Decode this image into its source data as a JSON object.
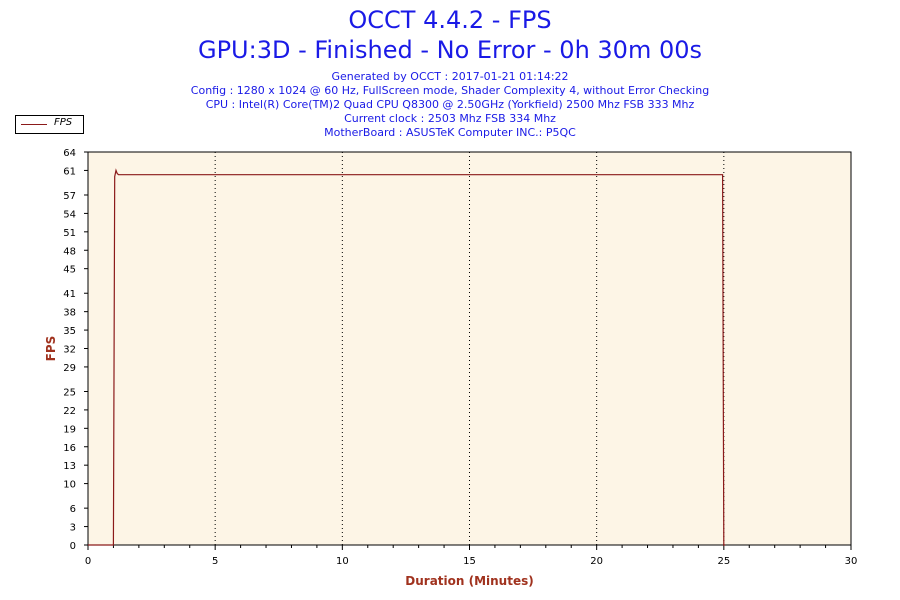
{
  "header": {
    "title": "OCCT 4.4.2 - FPS",
    "subtitle": "GPU:3D - Finished - No Error - 0h 30m 00s",
    "info_lines": [
      "Generated by OCCT : 2017-01-21 01:14:22",
      "Config : 1280 x 1024 @ 60 Hz, FullScreen mode, Shader Complexity 4, without Error Checking",
      "CPU : Intel(R) Core(TM)2 Quad CPU Q8300 @ 2.50GHz (Yorkfield) 2500 Mhz FSB 333 Mhz",
      "Current clock : 2503 Mhz FSB 334 Mhz",
      "MotherBoard : ASUSTeK Computer INC.: P5QC"
    ]
  },
  "colors": {
    "line": "#8b1a1a",
    "plot_bg": "#fdf5e6",
    "title": "#1a1ae6",
    "axis_title": "#a0321e"
  },
  "chart_data": {
    "type": "line",
    "xlabel": "Duration (Minutes)",
    "ylabel": "FPS",
    "xlim": [
      0,
      30
    ],
    "ylim": [
      0,
      64
    ],
    "x_ticks": [
      0,
      5,
      10,
      15,
      20,
      25,
      30
    ],
    "y_ticks": [
      0,
      3,
      6,
      10,
      13,
      16,
      19,
      22,
      25,
      29,
      32,
      35,
      38,
      41,
      45,
      48,
      51,
      54,
      57,
      61,
      64
    ],
    "grid": "vertical dotted at major x ticks",
    "legend": "top-left",
    "series": [
      {
        "name": "FPS",
        "x": [
          0,
          1.0,
          1.05,
          1.1,
          1.15,
          1.2,
          3,
          5,
          8,
          10,
          12,
          15,
          18,
          20,
          22,
          24.9,
          24.95,
          24.98,
          25.0,
          25.05
        ],
        "y": [
          0,
          0,
          60,
          61,
          60.5,
          60.3,
          60.3,
          60.3,
          60.3,
          60.3,
          60.3,
          60.3,
          60.3,
          60.3,
          60.3,
          60.3,
          60.3,
          24,
          0,
          0
        ]
      }
    ]
  }
}
